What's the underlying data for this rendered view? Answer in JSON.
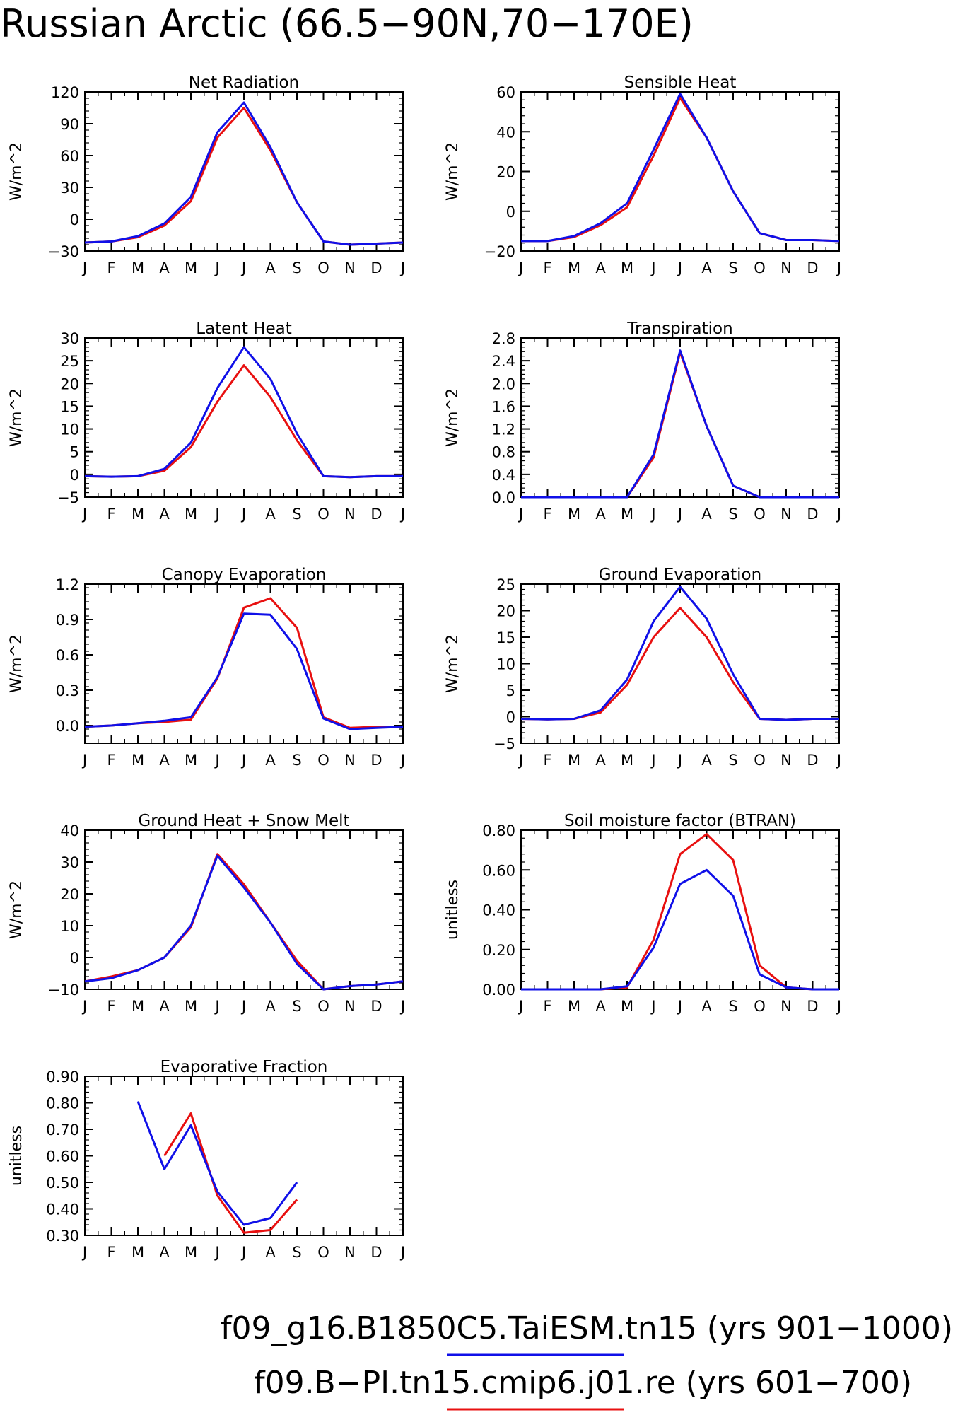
{
  "title": "Russian Arctic (66.5−90N,70−170E)",
  "legend": [
    {
      "label": "f09_g16.B1850C5.TaiESM.tn15 (yrs 901−1000)",
      "color": "#1010e8"
    },
    {
      "label": "f09.B−PI.tn15.cmip6.j01.re (yrs 601−700)",
      "color": "#e81010"
    }
  ],
  "chart_data": [
    {
      "type": "line",
      "title": "Net Radiation",
      "ylabel": "W/m^2",
      "categories": [
        "J",
        "F",
        "M",
        "A",
        "M",
        "J",
        "J",
        "A",
        "S",
        "O",
        "N",
        "D",
        "J"
      ],
      "ylim": [
        -30,
        120
      ],
      "yticks": [
        "-30",
        "0",
        "30",
        "60",
        "90",
        "120"
      ],
      "series": [
        {
          "color": "#e81010",
          "values": [
            -22,
            -21,
            -17,
            -6,
            17,
            77,
            105,
            65,
            16,
            -21,
            -24,
            -23,
            -22
          ]
        },
        {
          "color": "#1010e8",
          "values": [
            -22,
            -21,
            -16,
            -4,
            21,
            82,
            110,
            68,
            16,
            -21,
            -24,
            -23,
            -22
          ]
        }
      ]
    },
    {
      "type": "line",
      "title": "Sensible Heat",
      "ylabel": "W/m^2",
      "categories": [
        "J",
        "F",
        "M",
        "A",
        "M",
        "J",
        "J",
        "A",
        "S",
        "O",
        "N",
        "D",
        "J"
      ],
      "ylim": [
        -20,
        60
      ],
      "yticks": [
        "-20",
        "0",
        "20",
        "40",
        "60"
      ],
      "series": [
        {
          "color": "#e81010",
          "values": [
            -15,
            -15,
            -13,
            -7,
            2,
            28,
            57,
            37,
            10,
            -11,
            -14.5,
            -14.5,
            -15
          ]
        },
        {
          "color": "#1010e8",
          "values": [
            -15,
            -15,
            -12.5,
            -6,
            4,
            31,
            59,
            37,
            10,
            -11,
            -14.5,
            -14.5,
            -15
          ]
        }
      ]
    },
    {
      "type": "line",
      "title": "Latent Heat",
      "ylabel": "W/m^2",
      "categories": [
        "J",
        "F",
        "M",
        "A",
        "M",
        "J",
        "J",
        "A",
        "S",
        "O",
        "N",
        "D",
        "J"
      ],
      "ylim": [
        -5,
        30
      ],
      "yticks": [
        "-5",
        "0",
        "5",
        "10",
        "15",
        "20",
        "25",
        "30"
      ],
      "series": [
        {
          "color": "#e81010",
          "values": [
            -0.4,
            -0.5,
            -0.4,
            0.8,
            6,
            16,
            24,
            17,
            7.5,
            -0.4,
            -0.6,
            -0.4,
            -0.4
          ]
        },
        {
          "color": "#1010e8",
          "values": [
            -0.4,
            -0.5,
            -0.4,
            1.2,
            7,
            19,
            28,
            21,
            9,
            -0.4,
            -0.6,
            -0.4,
            -0.4
          ]
        }
      ]
    },
    {
      "type": "line",
      "title": "Transpiration",
      "ylabel": "W/m^2",
      "categories": [
        "J",
        "F",
        "M",
        "A",
        "M",
        "J",
        "J",
        "A",
        "S",
        "O",
        "N",
        "D",
        "J"
      ],
      "ylim": [
        0,
        2.8
      ],
      "yticks": [
        "0.0",
        "0.4",
        "0.8",
        "1.2",
        "1.6",
        "2.0",
        "2.4",
        "2.8"
      ],
      "series": [
        {
          "color": "#e81010",
          "values": [
            0,
            0,
            0,
            0,
            0,
            0.7,
            2.55,
            1.25,
            0.2,
            0,
            0,
            0,
            0
          ]
        },
        {
          "color": "#1010e8",
          "values": [
            0,
            0,
            0,
            0,
            0,
            0.75,
            2.58,
            1.25,
            0.2,
            0,
            0,
            0,
            0
          ]
        }
      ]
    },
    {
      "type": "line",
      "title": "Canopy Evaporation",
      "ylabel": "W/m^2",
      "categories": [
        "J",
        "F",
        "M",
        "A",
        "M",
        "J",
        "J",
        "A",
        "S",
        "O",
        "N",
        "D",
        "J"
      ],
      "ylim": [
        -0.15,
        1.2
      ],
      "yticks": [
        "0.0",
        "0.3",
        "0.6",
        "0.9",
        "1.2"
      ],
      "series": [
        {
          "color": "#e81010",
          "values": [
            -0.01,
            0,
            0.02,
            0.03,
            0.05,
            0.4,
            1.0,
            1.08,
            0.83,
            0.07,
            -0.02,
            -0.01,
            -0.01
          ]
        },
        {
          "color": "#1010e8",
          "values": [
            -0.01,
            0,
            0.02,
            0.04,
            0.07,
            0.41,
            0.95,
            0.94,
            0.65,
            0.06,
            -0.03,
            -0.02,
            -0.01
          ]
        }
      ]
    },
    {
      "type": "line",
      "title": "Ground Evaporation",
      "ylabel": "W/m^2",
      "categories": [
        "J",
        "F",
        "M",
        "A",
        "M",
        "J",
        "J",
        "A",
        "S",
        "O",
        "N",
        "D",
        "J"
      ],
      "ylim": [
        -5,
        25
      ],
      "yticks": [
        "-5",
        "0",
        "5",
        "10",
        "15",
        "20",
        "25"
      ],
      "series": [
        {
          "color": "#e81010",
          "values": [
            -0.4,
            -0.5,
            -0.4,
            0.8,
            6,
            15,
            20.5,
            15,
            6.5,
            -0.4,
            -0.6,
            -0.4,
            -0.4
          ]
        },
        {
          "color": "#1010e8",
          "values": [
            -0.4,
            -0.5,
            -0.4,
            1.2,
            7,
            18,
            24.5,
            18.5,
            8,
            -0.4,
            -0.6,
            -0.4,
            -0.4
          ]
        }
      ]
    },
    {
      "type": "line",
      "title": "Ground Heat + Snow Melt",
      "ylabel": "W/m^2",
      "categories": [
        "J",
        "F",
        "M",
        "A",
        "M",
        "J",
        "J",
        "A",
        "S",
        "O",
        "N",
        "D",
        "J"
      ],
      "ylim": [
        -10,
        40
      ],
      "yticks": [
        "-10",
        "0",
        "10",
        "20",
        "30",
        "40"
      ],
      "series": [
        {
          "color": "#e81010",
          "values": [
            -7.5,
            -6,
            -4,
            0,
            9.5,
            32.5,
            23,
            11,
            -1,
            -10,
            -9,
            -8.5,
            -7.5
          ]
        },
        {
          "color": "#1010e8",
          "values": [
            -7.5,
            -6.5,
            -4,
            0,
            10,
            32,
            22,
            11,
            -2,
            -10,
            -9,
            -8.5,
            -7.5
          ]
        }
      ]
    },
    {
      "type": "line",
      "title": "Soil moisture factor (BTRAN)",
      "ylabel": "unitless",
      "categories": [
        "J",
        "F",
        "M",
        "A",
        "M",
        "J",
        "J",
        "A",
        "S",
        "O",
        "N",
        "D",
        "J"
      ],
      "ylim": [
        0,
        0.8
      ],
      "yticks": [
        "0.00",
        "0.20",
        "0.40",
        "0.60",
        "0.80"
      ],
      "series": [
        {
          "color": "#e81010",
          "values": [
            0,
            0,
            0,
            0,
            0.01,
            0.25,
            0.68,
            0.78,
            0.65,
            0.12,
            0.01,
            0,
            0
          ]
        },
        {
          "color": "#1010e8",
          "values": [
            0,
            0,
            0,
            0,
            0.015,
            0.21,
            0.53,
            0.6,
            0.47,
            0.075,
            0.01,
            0,
            0
          ]
        }
      ]
    },
    {
      "type": "line",
      "title": "Evaporative Fraction",
      "ylabel": "unitless",
      "categories": [
        "J",
        "F",
        "M",
        "A",
        "M",
        "J",
        "J",
        "A",
        "S",
        "O",
        "N",
        "D",
        "J"
      ],
      "ylim": [
        0.3,
        0.9
      ],
      "yticks": [
        "0.30",
        "0.40",
        "0.50",
        "0.60",
        "0.70",
        "0.80",
        "0.90"
      ],
      "series": [
        {
          "color": "#e81010",
          "values": [
            null,
            null,
            null,
            0.6,
            0.76,
            0.45,
            0.31,
            0.32,
            0.435,
            null,
            null,
            null,
            null
          ]
        },
        {
          "color": "#1010e8",
          "values": [
            null,
            null,
            0.805,
            0.55,
            0.715,
            0.465,
            0.34,
            0.365,
            0.5,
            null,
            null,
            null,
            null
          ]
        }
      ]
    }
  ]
}
